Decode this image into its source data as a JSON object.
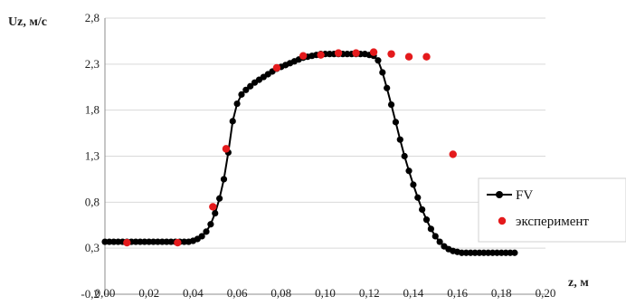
{
  "chart_data": {
    "type": "scatter",
    "title": "",
    "xlabel": "z, м",
    "ylabel": "Uz, м/с",
    "xlim": [
      0,
      0.2
    ],
    "ylim": [
      -0.2,
      2.8
    ],
    "grid": "horizontal",
    "legend_placement": "right",
    "x_ticks": [
      "0,00",
      "0,02",
      "0,04",
      "0,06",
      "0,08",
      "0,10",
      "0,12",
      "0,14",
      "0,16",
      "0,18",
      "0,20"
    ],
    "y_ticks": [
      "-0,2",
      "0,3",
      "0,8",
      "1,3",
      "1,8",
      "2,3",
      "2,8"
    ],
    "x_tick_values": [
      0,
      0.02,
      0.04,
      0.06,
      0.08,
      0.1,
      0.12,
      0.14,
      0.16,
      0.18,
      0.2
    ],
    "y_tick_values": [
      -0.2,
      0.3,
      0.8,
      1.3,
      1.8,
      2.3,
      2.8
    ],
    "series": [
      {
        "name": "FV",
        "style": "line-markers",
        "color": "#000000",
        "points": [
          [
            0.0,
            0.37
          ],
          [
            0.002,
            0.37
          ],
          [
            0.004,
            0.37
          ],
          [
            0.006,
            0.37
          ],
          [
            0.008,
            0.37
          ],
          [
            0.01,
            0.37
          ],
          [
            0.012,
            0.37
          ],
          [
            0.014,
            0.37
          ],
          [
            0.016,
            0.37
          ],
          [
            0.018,
            0.37
          ],
          [
            0.02,
            0.37
          ],
          [
            0.022,
            0.37
          ],
          [
            0.024,
            0.37
          ],
          [
            0.026,
            0.37
          ],
          [
            0.028,
            0.37
          ],
          [
            0.03,
            0.37
          ],
          [
            0.032,
            0.37
          ],
          [
            0.034,
            0.37
          ],
          [
            0.036,
            0.37
          ],
          [
            0.038,
            0.37
          ],
          [
            0.04,
            0.38
          ],
          [
            0.042,
            0.4
          ],
          [
            0.044,
            0.43
          ],
          [
            0.046,
            0.48
          ],
          [
            0.048,
            0.56
          ],
          [
            0.05,
            0.68
          ],
          [
            0.052,
            0.84
          ],
          [
            0.054,
            1.05
          ],
          [
            0.056,
            1.34
          ],
          [
            0.058,
            1.68
          ],
          [
            0.06,
            1.87
          ],
          [
            0.062,
            1.97
          ],
          [
            0.064,
            2.02
          ],
          [
            0.066,
            2.06
          ],
          [
            0.068,
            2.1
          ],
          [
            0.07,
            2.13
          ],
          [
            0.072,
            2.16
          ],
          [
            0.074,
            2.19
          ],
          [
            0.076,
            2.22
          ],
          [
            0.078,
            2.25
          ],
          [
            0.08,
            2.27
          ],
          [
            0.082,
            2.29
          ],
          [
            0.084,
            2.31
          ],
          [
            0.086,
            2.33
          ],
          [
            0.088,
            2.35
          ],
          [
            0.09,
            2.37
          ],
          [
            0.092,
            2.38
          ],
          [
            0.094,
            2.39
          ],
          [
            0.096,
            2.4
          ],
          [
            0.098,
            2.41
          ],
          [
            0.1,
            2.41
          ],
          [
            0.102,
            2.41
          ],
          [
            0.104,
            2.41
          ],
          [
            0.106,
            2.41
          ],
          [
            0.108,
            2.41
          ],
          [
            0.11,
            2.41
          ],
          [
            0.112,
            2.41
          ],
          [
            0.114,
            2.41
          ],
          [
            0.116,
            2.41
          ],
          [
            0.118,
            2.41
          ],
          [
            0.12,
            2.4
          ],
          [
            0.122,
            2.39
          ],
          [
            0.124,
            2.34
          ],
          [
            0.126,
            2.21
          ],
          [
            0.128,
            2.04
          ],
          [
            0.13,
            1.86
          ],
          [
            0.132,
            1.67
          ],
          [
            0.134,
            1.48
          ],
          [
            0.136,
            1.3
          ],
          [
            0.138,
            1.14
          ],
          [
            0.14,
            0.99
          ],
          [
            0.142,
            0.85
          ],
          [
            0.144,
            0.72
          ],
          [
            0.146,
            0.61
          ],
          [
            0.148,
            0.51
          ],
          [
            0.15,
            0.43
          ],
          [
            0.152,
            0.37
          ],
          [
            0.154,
            0.32
          ],
          [
            0.156,
            0.29
          ],
          [
            0.158,
            0.27
          ],
          [
            0.16,
            0.26
          ],
          [
            0.162,
            0.25
          ],
          [
            0.164,
            0.25
          ],
          [
            0.166,
            0.25
          ],
          [
            0.168,
            0.25
          ],
          [
            0.17,
            0.25
          ],
          [
            0.172,
            0.25
          ],
          [
            0.174,
            0.25
          ],
          [
            0.176,
            0.25
          ],
          [
            0.178,
            0.25
          ],
          [
            0.18,
            0.25
          ],
          [
            0.182,
            0.25
          ],
          [
            0.184,
            0.25
          ],
          [
            0.186,
            0.25
          ]
        ]
      },
      {
        "name": "эксперимент",
        "style": "markers",
        "color": "#e41a1c",
        "points": [
          [
            0.01,
            0.36
          ],
          [
            0.033,
            0.36
          ],
          [
            0.049,
            0.75
          ],
          [
            0.055,
            1.38
          ],
          [
            0.078,
            2.26
          ],
          [
            0.09,
            2.39
          ],
          [
            0.098,
            2.4
          ],
          [
            0.106,
            2.42
          ],
          [
            0.114,
            2.42
          ],
          [
            0.122,
            2.43
          ],
          [
            0.13,
            2.41
          ],
          [
            0.138,
            2.38
          ],
          [
            0.146,
            2.38
          ],
          [
            0.158,
            1.32
          ],
          [
            0.178,
            0.41
          ]
        ]
      }
    ]
  }
}
